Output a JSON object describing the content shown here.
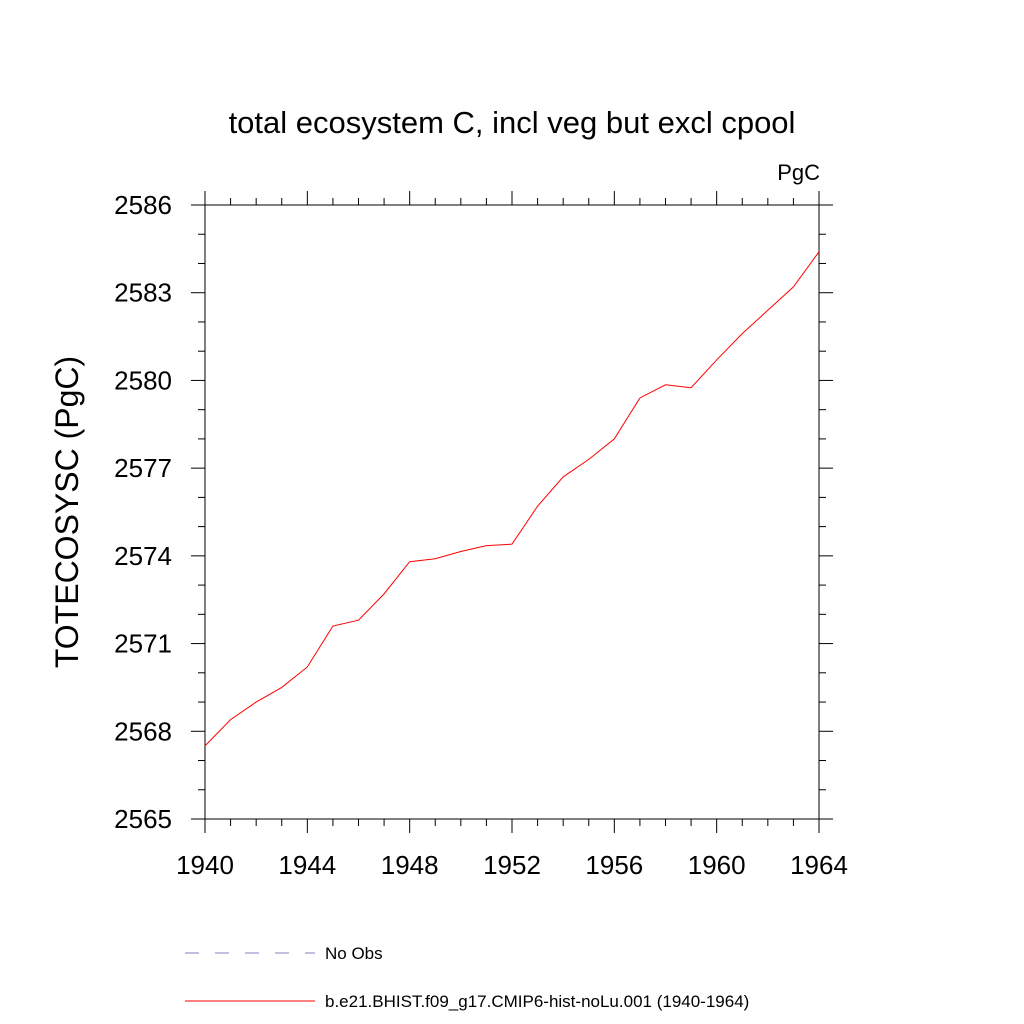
{
  "chart_data": {
    "type": "line",
    "title": "total ecosystem C, incl veg but excl cpool",
    "units": "PgC",
    "ylabel": "TOTECOSYSC  (PgC)",
    "xlabel": "",
    "xlim": [
      1940,
      1964
    ],
    "ylim": [
      2565,
      2586
    ],
    "x_ticks": [
      "1940",
      "1944",
      "1948",
      "1952",
      "1956",
      "1960",
      "1964"
    ],
    "y_ticks": [
      "2565",
      "2568",
      "2571",
      "2574",
      "2577",
      "2580",
      "2583",
      "2586"
    ],
    "grid": false,
    "legend_position": "bottom",
    "legend": [
      {
        "label": "No Obs",
        "color": "#8080c0",
        "style": "dashed"
      },
      {
        "label": "b.e21.BHIST.f09_g17.CMIP6-hist-noLu.001 (1940-1964)",
        "color": "#ff0000",
        "style": "solid"
      }
    ],
    "series": [
      {
        "color": "#ff0000",
        "x": [
          1940,
          1941,
          1942,
          1943,
          1944,
          1945,
          1946,
          1947,
          1948,
          1949,
          1950,
          1951,
          1952,
          1953,
          1954,
          1955,
          1956,
          1957,
          1958,
          1959,
          1960,
          1961,
          1962,
          1963,
          1964
        ],
        "values": [
          2567.5,
          2568.4,
          2569.0,
          2569.5,
          2570.2,
          2571.6,
          2571.8,
          2572.7,
          2573.8,
          2573.9,
          2574.15,
          2574.35,
          2574.4,
          2575.7,
          2576.7,
          2577.3,
          2578.0,
          2579.4,
          2579.85,
          2579.75,
          2580.7,
          2581.6,
          2582.4,
          2583.2,
          2584.4
        ]
      }
    ]
  }
}
